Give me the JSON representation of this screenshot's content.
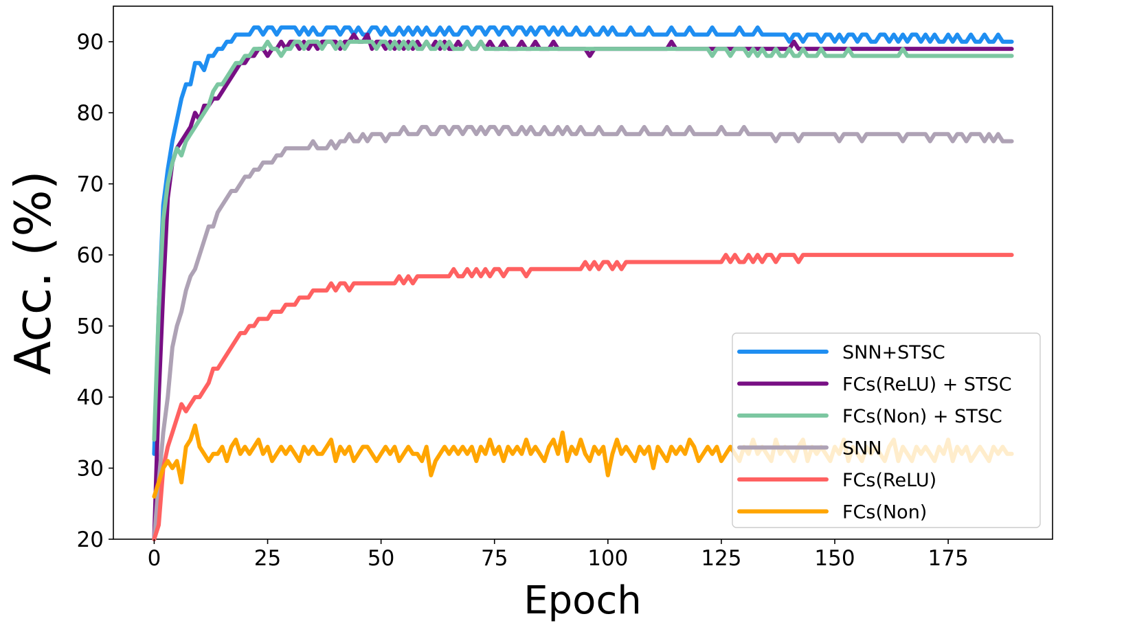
{
  "chart_data": {
    "type": "line",
    "title": "",
    "xlabel": "Epoch",
    "ylabel": "Acc. (%)",
    "xlim": [
      -9,
      198
    ],
    "ylim": [
      20,
      95
    ],
    "xticks": [
      0,
      25,
      50,
      75,
      100,
      125,
      150,
      175
    ],
    "yticks": [
      20,
      30,
      40,
      50,
      60,
      70,
      80,
      90
    ],
    "grid": false,
    "legend_position": "lower-right",
    "x": [
      0,
      1,
      2,
      3,
      4,
      5,
      6,
      7,
      8,
      9,
      10,
      11,
      12,
      13,
      14,
      15,
      16,
      17,
      18,
      19,
      20,
      21,
      22,
      23,
      24,
      25,
      26,
      27,
      28,
      29,
      30,
      31,
      32,
      33,
      34,
      35,
      36,
      37,
      38,
      39,
      40,
      41,
      42,
      43,
      44,
      45,
      46,
      47,
      48,
      49,
      50,
      51,
      52,
      53,
      54,
      55,
      56,
      57,
      58,
      59,
      60,
      61,
      62,
      63,
      64,
      65,
      66,
      67,
      68,
      69,
      70,
      71,
      72,
      73,
      74,
      75,
      76,
      77,
      78,
      79,
      80,
      81,
      82,
      83,
      84,
      85,
      86,
      87,
      88,
      89,
      90,
      91,
      92,
      93,
      94,
      95,
      96,
      97,
      98,
      99,
      100,
      101,
      102,
      103,
      104,
      105,
      106,
      107,
      108,
      109,
      110,
      111,
      112,
      113,
      114,
      115,
      116,
      117,
      118,
      119,
      120,
      121,
      122,
      123,
      124,
      125,
      126,
      127,
      128,
      129,
      130,
      131,
      132,
      133,
      134,
      135,
      136,
      137,
      138,
      139,
      140,
      141,
      142,
      143,
      144,
      145,
      146,
      147,
      148,
      149,
      150,
      151,
      152,
      153,
      154,
      155,
      156,
      157,
      158,
      159,
      160,
      161,
      162,
      163,
      164,
      165,
      166,
      167,
      168,
      169,
      170,
      171,
      172,
      173,
      174,
      175,
      176,
      177,
      178,
      179,
      180,
      181,
      182,
      183,
      184,
      185,
      186,
      187,
      188,
      189
    ],
    "series": [
      {
        "name": "SNN+STSC",
        "color": "#1f8ef1",
        "values": [
          32,
          52,
          67,
          72,
          76,
          79,
          82,
          84,
          84,
          87,
          87,
          86,
          88,
          88,
          89,
          89,
          90,
          90,
          91,
          91,
          91,
          91,
          92,
          92,
          91,
          92,
          92,
          91,
          92,
          92,
          92,
          92,
          91,
          92,
          91,
          92,
          91,
          91,
          92,
          92,
          92,
          91,
          92,
          92,
          91,
          92,
          91,
          91,
          92,
          92,
          91,
          92,
          91,
          91,
          92,
          91,
          92,
          91,
          92,
          91,
          92,
          91,
          91,
          92,
          91,
          92,
          91,
          91,
          92,
          92,
          91,
          92,
          92,
          91,
          92,
          92,
          91,
          92,
          92,
          91,
          92,
          92,
          91,
          92,
          91,
          92,
          92,
          91,
          92,
          91,
          92,
          91,
          91,
          92,
          91,
          91,
          92,
          91,
          91,
          92,
          91,
          92,
          91,
          91,
          91,
          92,
          91,
          91,
          91,
          92,
          91,
          91,
          91,
          91,
          92,
          91,
          91,
          91,
          92,
          91,
          91,
          91,
          91,
          92,
          91,
          91,
          91,
          91,
          91,
          92,
          91,
          91,
          91,
          92,
          91,
          91,
          91,
          91,
          91,
          91,
          90,
          91,
          91,
          90,
          91,
          91,
          91,
          90,
          91,
          91,
          90,
          91,
          90,
          91,
          91,
          90,
          91,
          91,
          90,
          90,
          91,
          91,
          90,
          91,
          90,
          91,
          90,
          91,
          91,
          90,
          91,
          90,
          91,
          90,
          90,
          91,
          90,
          91,
          90,
          90,
          91,
          90,
          90,
          91,
          90,
          90,
          91,
          90,
          90,
          90
        ]
      },
      {
        "name": "FCs(ReLU) + STSC",
        "color": "#780f84",
        "values": [
          20,
          40,
          55,
          68,
          73,
          75,
          76,
          77,
          78,
          80,
          79,
          81,
          81,
          82,
          82,
          83,
          84,
          85,
          86,
          87,
          87,
          88,
          88,
          89,
          89,
          88,
          89,
          89,
          90,
          89,
          90,
          90,
          89,
          90,
          89,
          90,
          89,
          90,
          90,
          90,
          90,
          89,
          90,
          90,
          91,
          90,
          90,
          91,
          89,
          90,
          90,
          89,
          90,
          89,
          90,
          89,
          90,
          89,
          90,
          89,
          90,
          89,
          90,
          89,
          90,
          89,
          89,
          90,
          89,
          90,
          89,
          89,
          90,
          89,
          90,
          89,
          89,
          90,
          89,
          89,
          89,
          90,
          89,
          89,
          90,
          89,
          89,
          89,
          90,
          89,
          89,
          89,
          89,
          89,
          89,
          89,
          88,
          89,
          89,
          89,
          89,
          89,
          89,
          89,
          89,
          89,
          89,
          89,
          89,
          89,
          89,
          89,
          89,
          89,
          90,
          89,
          89,
          89,
          89,
          89,
          89,
          89,
          89,
          89,
          89,
          89,
          89,
          89,
          89,
          89,
          89,
          89,
          89,
          89,
          89,
          89,
          89,
          89,
          89,
          89,
          89,
          90,
          89,
          89,
          89,
          89,
          89,
          89,
          89,
          89,
          89,
          89,
          89,
          89,
          89,
          89,
          89,
          89,
          89,
          89,
          89,
          89,
          89,
          89,
          89,
          89,
          89,
          89,
          89,
          89,
          89,
          89,
          89,
          89,
          89,
          89,
          89,
          89,
          89,
          89,
          89,
          89,
          89,
          89,
          89,
          89,
          89,
          89,
          89,
          89
        ]
      },
      {
        "name": "FCs(Non) + STSC",
        "color": "#7cc7a1",
        "values": [
          34,
          52,
          65,
          70,
          73,
          75,
          74,
          76,
          77,
          78,
          79,
          80,
          81,
          83,
          84,
          84,
          85,
          86,
          87,
          87,
          88,
          88,
          89,
          89,
          89,
          90,
          89,
          89,
          88,
          89,
          89,
          90,
          90,
          89,
          90,
          90,
          90,
          89,
          90,
          90,
          89,
          90,
          89,
          90,
          90,
          90,
          90,
          90,
          90,
          89,
          90,
          90,
          89,
          90,
          89,
          90,
          89,
          90,
          89,
          89,
          90,
          89,
          89,
          90,
          89,
          90,
          89,
          89,
          89,
          90,
          89,
          89,
          90,
          89,
          89,
          89,
          89,
          89,
          89,
          89,
          89,
          89,
          89,
          89,
          89,
          89,
          89,
          89,
          89,
          89,
          89,
          89,
          89,
          89,
          89,
          89,
          89,
          89,
          89,
          89,
          89,
          89,
          89,
          89,
          89,
          89,
          89,
          89,
          89,
          89,
          89,
          89,
          89,
          89,
          89,
          89,
          89,
          89,
          89,
          89,
          89,
          89,
          89,
          88,
          89,
          89,
          89,
          88,
          89,
          89,
          89,
          88,
          89,
          88,
          89,
          88,
          88,
          89,
          88,
          88,
          89,
          88,
          88,
          89,
          88,
          88,
          88,
          89,
          88,
          88,
          88,
          88,
          88,
          89,
          88,
          88,
          88,
          88,
          88,
          88,
          88,
          88,
          88,
          88,
          88,
          89,
          88,
          88,
          88,
          88,
          88,
          88,
          88,
          88,
          88,
          88,
          88,
          88,
          88,
          88,
          88,
          88,
          88,
          88,
          88,
          88,
          88,
          88,
          88,
          88
        ]
      },
      {
        "name": "SNN",
        "color": "#aea2b5",
        "values": [
          20,
          28,
          35,
          40,
          47,
          50,
          52,
          55,
          57,
          58,
          60,
          62,
          64,
          64,
          66,
          67,
          68,
          69,
          69,
          70,
          71,
          71,
          72,
          72,
          73,
          73,
          73,
          74,
          74,
          75,
          75,
          75,
          75,
          75,
          75,
          76,
          75,
          75,
          75,
          76,
          75,
          76,
          76,
          77,
          76,
          76,
          77,
          76,
          77,
          77,
          77,
          76,
          77,
          77,
          77,
          78,
          77,
          77,
          77,
          78,
          78,
          77,
          77,
          78,
          78,
          77,
          78,
          78,
          77,
          78,
          78,
          77,
          78,
          77,
          78,
          78,
          77,
          78,
          78,
          77,
          77,
          78,
          77,
          78,
          77,
          77,
          78,
          77,
          77,
          78,
          77,
          78,
          77,
          77,
          78,
          77,
          77,
          77,
          78,
          77,
          77,
          77,
          77,
          78,
          77,
          77,
          77,
          77,
          78,
          77,
          77,
          77,
          77,
          78,
          77,
          77,
          77,
          77,
          78,
          77,
          77,
          77,
          77,
          77,
          77,
          78,
          77,
          77,
          77,
          77,
          78,
          77,
          77,
          77,
          77,
          77,
          77,
          76,
          77,
          77,
          77,
          77,
          76,
          77,
          77,
          77,
          77,
          77,
          77,
          77,
          77,
          76,
          77,
          77,
          77,
          77,
          76,
          77,
          77,
          77,
          77,
          77,
          77,
          77,
          77,
          76,
          77,
          77,
          77,
          77,
          77,
          76,
          77,
          77,
          77,
          77,
          76,
          77,
          77,
          76,
          77,
          77,
          77,
          76,
          77,
          76,
          77,
          76,
          76,
          76
        ]
      },
      {
        "name": "FCs(ReLU)",
        "color": "#ff6161",
        "values": [
          20,
          22,
          30,
          33,
          35,
          37,
          39,
          38,
          39,
          40,
          40,
          41,
          42,
          44,
          44,
          45,
          46,
          47,
          48,
          49,
          49,
          50,
          50,
          51,
          51,
          51,
          52,
          52,
          52,
          53,
          53,
          53,
          54,
          54,
          54,
          55,
          55,
          55,
          55,
          56,
          55,
          56,
          56,
          55,
          56,
          56,
          56,
          56,
          56,
          56,
          56,
          56,
          56,
          56,
          57,
          56,
          57,
          56,
          57,
          57,
          57,
          57,
          57,
          57,
          57,
          57,
          58,
          57,
          57,
          58,
          57,
          58,
          57,
          58,
          57,
          58,
          58,
          57,
          58,
          58,
          58,
          58,
          57,
          58,
          58,
          58,
          58,
          58,
          58,
          58,
          58,
          58,
          58,
          58,
          58,
          59,
          58,
          59,
          58,
          59,
          59,
          58,
          59,
          58,
          59,
          59,
          59,
          59,
          59,
          59,
          59,
          59,
          59,
          59,
          59,
          59,
          59,
          59,
          59,
          59,
          59,
          59,
          59,
          59,
          59,
          59,
          60,
          59,
          60,
          59,
          59,
          60,
          59,
          60,
          59,
          60,
          60,
          59,
          60,
          60,
          60,
          60,
          59,
          60,
          60,
          60,
          60,
          60,
          60,
          60,
          60,
          60,
          60,
          60,
          60,
          60,
          60,
          60,
          60,
          60,
          60,
          60,
          60,
          60,
          60,
          60,
          60,
          60,
          60,
          60,
          60,
          60,
          60,
          60,
          60,
          60,
          60,
          60,
          60,
          60,
          60,
          60,
          60,
          60,
          60,
          60,
          60,
          60,
          60,
          60
        ]
      },
      {
        "name": "FCs(Non)",
        "color": "#ffa500",
        "values": [
          26,
          28,
          30,
          31,
          30,
          31,
          28,
          33,
          34,
          36,
          33,
          32,
          31,
          32,
          32,
          33,
          31,
          33,
          34,
          32,
          33,
          32,
          33,
          34,
          32,
          33,
          31,
          32,
          33,
          32,
          33,
          32,
          31,
          33,
          32,
          33,
          32,
          32,
          33,
          34,
          31,
          33,
          32,
          33,
          31,
          32,
          33,
          33,
          32,
          31,
          32,
          33,
          32,
          33,
          31,
          32,
          33,
          32,
          32,
          31,
          33,
          29,
          31,
          32,
          33,
          32,
          33,
          32,
          33,
          32,
          33,
          31,
          33,
          32,
          34,
          32,
          33,
          31,
          33,
          32,
          33,
          32,
          34,
          32,
          33,
          32,
          31,
          33,
          34,
          32,
          35,
          31,
          33,
          32,
          34,
          32,
          31,
          33,
          32,
          33,
          29,
          32,
          34,
          32,
          33,
          32,
          31,
          33,
          32,
          33,
          30,
          33,
          32,
          31,
          33,
          32,
          33,
          32,
          34,
          33,
          31,
          32,
          33,
          32,
          33,
          31,
          32,
          33,
          32,
          31,
          33,
          32,
          34,
          32,
          33,
          32,
          31,
          34,
          32,
          33,
          32,
          31,
          33,
          34,
          31,
          33,
          32,
          33,
          32,
          31,
          33,
          32,
          34,
          31,
          33,
          32,
          31,
          33,
          32,
          33,
          32,
          31,
          33,
          34,
          31,
          33,
          32,
          31,
          33,
          32,
          33,
          32,
          31,
          33,
          32,
          34,
          31,
          33,
          32,
          33,
          31,
          32,
          33,
          32,
          31,
          33,
          32,
          33,
          32,
          32
        ]
      }
    ]
  }
}
